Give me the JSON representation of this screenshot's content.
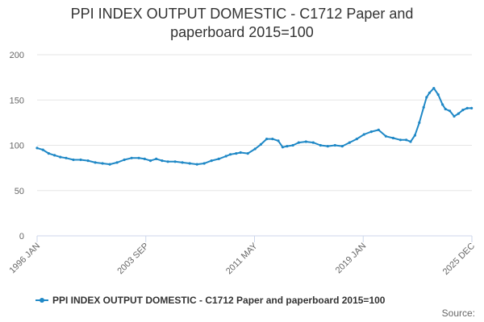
{
  "chart_data": {
    "type": "line",
    "title": "PPI INDEX OUTPUT DOMESTIC - C1712 Paper and paperboard 2015=100",
    "xlabel": "",
    "ylabel": "",
    "ylim": [
      0,
      200
    ],
    "yticks": [
      0,
      50,
      100,
      150,
      200
    ],
    "xticks": [
      "1996 JAN",
      "2003 SEP",
      "2011 MAY",
      "2019 JAN",
      "2025 DEC"
    ],
    "grid": true,
    "legend_position": "bottom",
    "color": "#1f88c6",
    "series": [
      {
        "name": "PPI INDEX OUTPUT DOMESTIC - C1712 Paper and paperboard 2015=100",
        "x": [
          1996.0,
          1996.4,
          1996.8,
          1997.2,
          1997.6,
          1998.0,
          1998.5,
          1999.0,
          1999.5,
          2000.0,
          2000.5,
          2001.0,
          2001.5,
          2002.0,
          2002.5,
          2003.0,
          2003.4,
          2003.8,
          2004.2,
          2004.6,
          2005.0,
          2005.5,
          2006.0,
          2006.5,
          2007.0,
          2007.5,
          2008.0,
          2008.5,
          2009.0,
          2009.3,
          2009.7,
          2010.0,
          2010.5,
          2011.0,
          2011.4,
          2011.8,
          2012.2,
          2012.6,
          2012.9,
          2013.2,
          2013.6,
          2014.0,
          2014.5,
          2015.0,
          2015.5,
          2016.0,
          2016.5,
          2017.0,
          2017.5,
          2018.0,
          2018.5,
          2019.0,
          2019.5,
          2020.0,
          2020.5,
          2021.0,
          2021.4,
          2021.7,
          2022.0,
          2022.3,
          2022.6,
          2022.8,
          2023.0,
          2023.3,
          2023.6,
          2023.9,
          2024.1,
          2024.4,
          2024.7,
          2025.0,
          2025.3,
          2025.6,
          2025.9
        ],
        "values": [
          97,
          95,
          91,
          89,
          87,
          86,
          84,
          84,
          83,
          81,
          80,
          79,
          81,
          84,
          86,
          86,
          85,
          83,
          85,
          83,
          82,
          82,
          81,
          80,
          79,
          80,
          83,
          85,
          88,
          90,
          91,
          92,
          91,
          96,
          101,
          107,
          107,
          105,
          98,
          99,
          100,
          103,
          104,
          103,
          100,
          99,
          100,
          99,
          103,
          107,
          112,
          115,
          117,
          110,
          108,
          106,
          106,
          104,
          111,
          125,
          142,
          153,
          158,
          163,
          156,
          145,
          140,
          138,
          132,
          135,
          139,
          141,
          141
        ]
      }
    ]
  },
  "legend": {
    "label": "PPI INDEX OUTPUT DOMESTIC - C1712 Paper and paperboard 2015=100"
  },
  "source": {
    "label": "Source:"
  }
}
